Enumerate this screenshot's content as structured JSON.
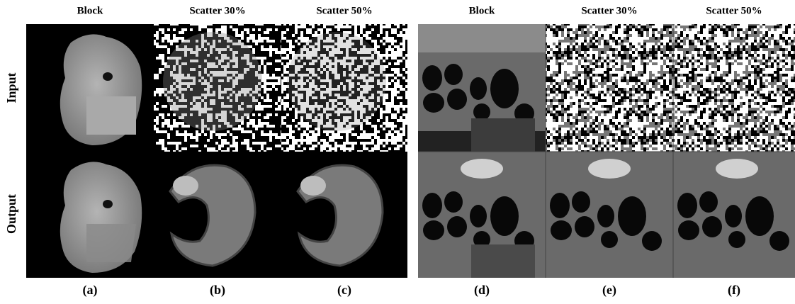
{
  "figure": {
    "panels": [
      {
        "column_headers": [
          "Block",
          "Scatter 30%",
          "Scatter 50%"
        ],
        "captions": [
          "(a)",
          "(b)",
          "(c)"
        ]
      },
      {
        "column_headers": [
          "Block",
          "Scatter 30%",
          "Scatter 50%"
        ],
        "captions": [
          "(d)",
          "(e)",
          "(f)"
        ]
      }
    ],
    "row_labels": [
      "Input",
      "Output"
    ]
  }
}
